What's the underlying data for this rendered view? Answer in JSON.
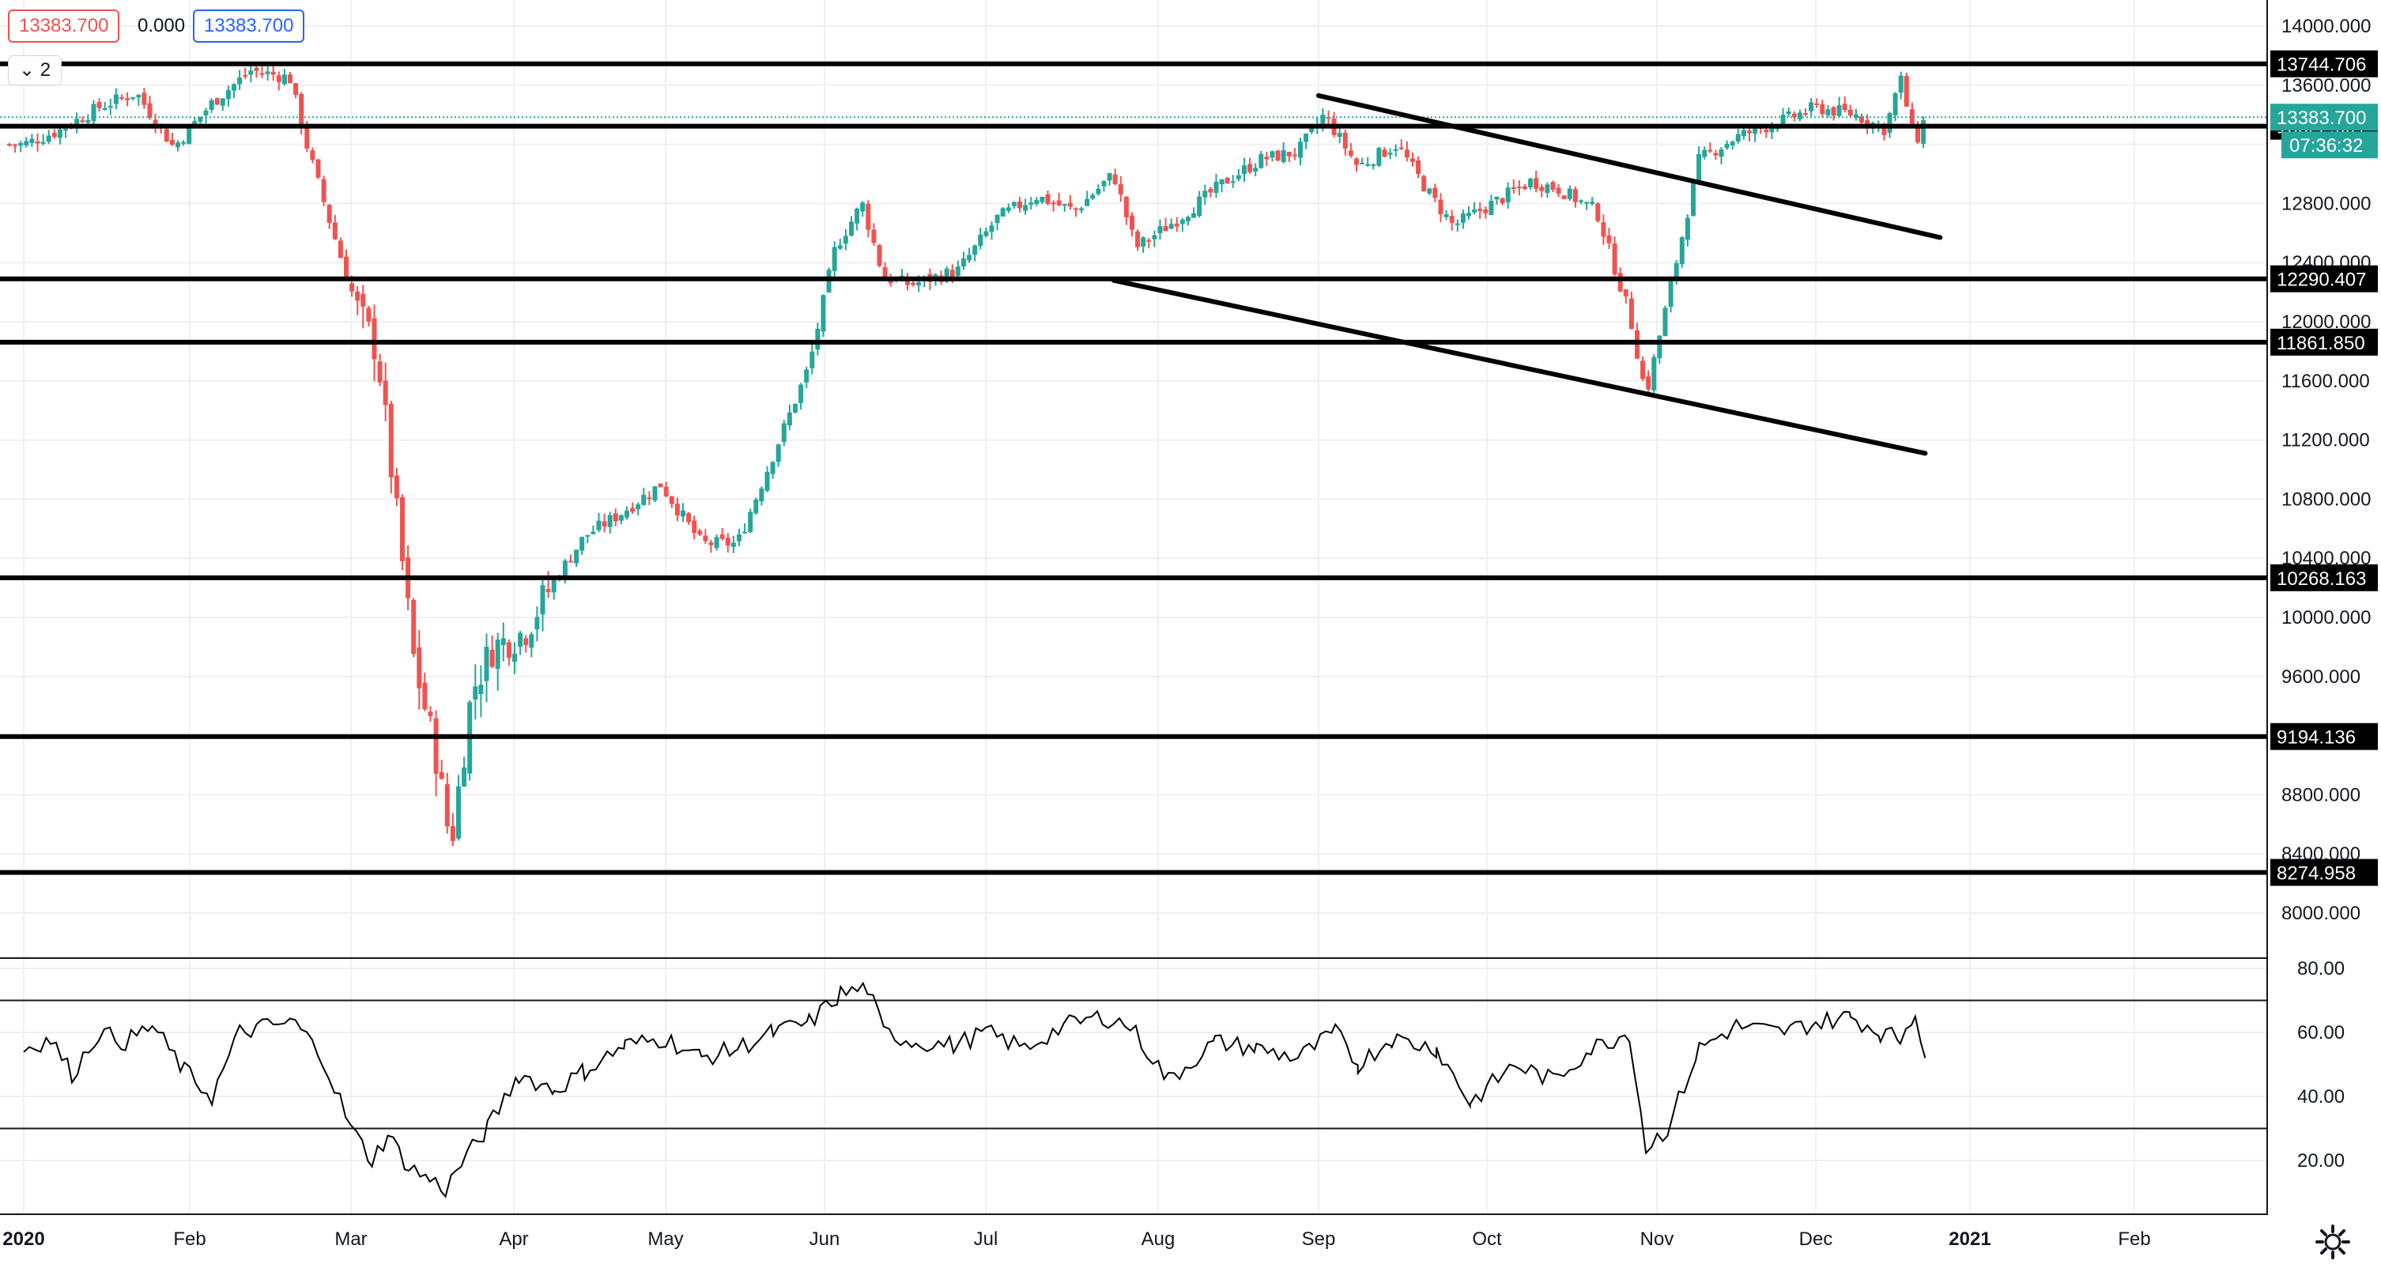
{
  "header": {
    "open_value": "13383.700",
    "change_value": "0.000",
    "close_value": "13383.700",
    "collapse_label": "⌄ 2"
  },
  "colors": {
    "up": "#26a69a",
    "down": "#ef5350",
    "hline": "#000000",
    "grid": "#eef0f3",
    "last_price_bg": "#26a69a"
  },
  "icons": {
    "settings": "gear-icon",
    "collapse": "chevron-down-icon"
  },
  "chart_data": [
    {
      "type": "candlestick",
      "title": "",
      "x_labels": [
        "2020",
        "Feb",
        "Mar",
        "Apr",
        "May",
        "Jun",
        "Jul",
        "Aug",
        "Sep",
        "Oct",
        "Nov",
        "Dec",
        "2021",
        "Feb"
      ],
      "y_ticks": [
        "8000.000",
        "8400.000",
        "8800.000",
        "9200.000",
        "9600.000",
        "10000.000",
        "10400.000",
        "10800.000",
        "11200.000",
        "11600.000",
        "12000.000",
        "12400.000",
        "12800.000",
        "13200.000",
        "13600.000",
        "14000.000"
      ],
      "ylim": [
        7780,
        14080
      ],
      "grid": true,
      "last_price": {
        "value": 13383.7,
        "label": "13383.700",
        "countdown": "07:36:32"
      },
      "horizontal_levels": [
        {
          "value": 13744.706,
          "label": "13744.706"
        },
        {
          "value": 13322.691,
          "label": "13322.691"
        },
        {
          "value": 12290.407,
          "label": "12290.407"
        },
        {
          "value": 11861.85,
          "label": "11861.850"
        },
        {
          "value": 10268.163,
          "label": "10268.163"
        },
        {
          "value": 9194.136,
          "label": "9194.136"
        },
        {
          "value": 8274.958,
          "label": "8274.958"
        }
      ],
      "trendlines": [
        {
          "from": [
            "2020-09-01",
            13530
          ],
          "to": [
            "2020-12-26",
            12570
          ]
        },
        {
          "from": [
            "2020-07-24",
            12280
          ],
          "to": [
            "2020-12-23",
            11110
          ]
        }
      ],
      "close_series": {
        "dates": [
          "2020-01-01",
          "2020-01-08",
          "2020-01-15",
          "2020-01-22",
          "2020-01-29",
          "2020-02-05",
          "2020-02-12",
          "2020-02-19",
          "2020-02-22",
          "2020-02-26",
          "2020-03-02",
          "2020-03-06",
          "2020-03-10",
          "2020-03-13",
          "2020-03-17",
          "2020-03-20",
          "2020-03-24",
          "2020-03-28",
          "2020-04-03",
          "2020-04-09",
          "2020-04-15",
          "2020-04-22",
          "2020-04-30",
          "2020-05-08",
          "2020-05-15",
          "2020-05-22",
          "2020-05-29",
          "2020-06-03",
          "2020-06-08",
          "2020-06-12",
          "2020-06-17",
          "2020-06-26",
          "2020-07-03",
          "2020-07-10",
          "2020-07-17",
          "2020-07-24",
          "2020-07-28",
          "2020-08-05",
          "2020-08-14",
          "2020-08-21",
          "2020-08-28",
          "2020-09-02",
          "2020-09-08",
          "2020-09-15",
          "2020-09-21",
          "2020-09-25",
          "2020-10-02",
          "2020-10-09",
          "2020-10-14",
          "2020-10-21",
          "2020-10-27",
          "2020-10-30",
          "2020-11-04",
          "2020-11-09",
          "2020-11-16",
          "2020-11-24",
          "2020-12-01",
          "2020-12-09",
          "2020-12-15",
          "2020-12-18",
          "2020-12-21",
          "2020-12-23"
        ],
        "values": [
          13200,
          13300,
          13450,
          13550,
          13180,
          13480,
          13700,
          13650,
          13200,
          12700,
          12100,
          11800,
          10600,
          9700,
          9100,
          8450,
          9500,
          9800,
          9900,
          10250,
          10550,
          10700,
          10900,
          10500,
          10500,
          11100,
          11700,
          12500,
          12800,
          12300,
          12250,
          12350,
          12700,
          12850,
          12750,
          13000,
          12500,
          12700,
          12950,
          13100,
          13150,
          13400,
          13050,
          13200,
          12850,
          12650,
          12800,
          12950,
          12900,
          12750,
          12050,
          11500,
          12300,
          13100,
          13250,
          13350,
          13450,
          13400,
          13300,
          13650,
          13200,
          13383.7
        ]
      },
      "ohlc_note": "candles generated around close_series",
      "rsi": {
        "y_ticks": [
          "80.00",
          "60.00",
          "40.00",
          "20.00"
        ],
        "ylim": [
          3,
          83
        ],
        "bands": [
          70,
          30
        ],
        "dates": [
          "2020-01-01",
          "2020-01-06",
          "2020-01-10",
          "2020-01-15",
          "2020-01-20",
          "2020-01-25",
          "2020-01-31",
          "2020-02-05",
          "2020-02-10",
          "2020-02-15",
          "2020-02-20",
          "2020-02-25",
          "2020-03-01",
          "2020-03-05",
          "2020-03-08",
          "2020-03-12",
          "2020-03-16",
          "2020-03-19",
          "2020-03-22",
          "2020-03-27",
          "2020-04-02",
          "2020-04-09",
          "2020-04-15",
          "2020-04-23",
          "2020-05-01",
          "2020-05-08",
          "2020-05-15",
          "2020-05-22",
          "2020-05-29",
          "2020-06-04",
          "2020-06-09",
          "2020-06-12",
          "2020-06-18",
          "2020-06-25",
          "2020-07-01",
          "2020-07-08",
          "2020-07-15",
          "2020-07-22",
          "2020-07-27",
          "2020-08-03",
          "2020-08-12",
          "2020-08-20",
          "2020-08-28",
          "2020-09-04",
          "2020-09-08",
          "2020-09-14",
          "2020-09-22",
          "2020-09-28",
          "2020-10-06",
          "2020-10-13",
          "2020-10-20",
          "2020-10-27",
          "2020-10-30",
          "2020-11-03",
          "2020-11-09",
          "2020-11-16",
          "2020-11-24",
          "2020-12-01",
          "2020-12-08",
          "2020-12-14",
          "2020-12-18",
          "2020-12-21",
          "2020-12-23"
        ],
        "values": [
          55,
          58,
          47,
          60,
          57,
          62,
          48,
          40,
          60,
          62,
          63,
          52,
          30,
          20,
          28,
          18,
          14,
          11,
          19,
          30,
          47,
          42,
          48,
          56,
          58,
          52,
          55,
          60,
          63,
          72,
          74,
          60,
          57,
          56,
          60,
          55,
          62,
          65,
          62,
          45,
          57,
          55,
          52,
          60,
          50,
          58,
          55,
          38,
          50,
          45,
          55,
          60,
          24,
          30,
          55,
          62,
          60,
          63,
          65,
          60,
          58,
          67,
          52
        ]
      }
    }
  ]
}
